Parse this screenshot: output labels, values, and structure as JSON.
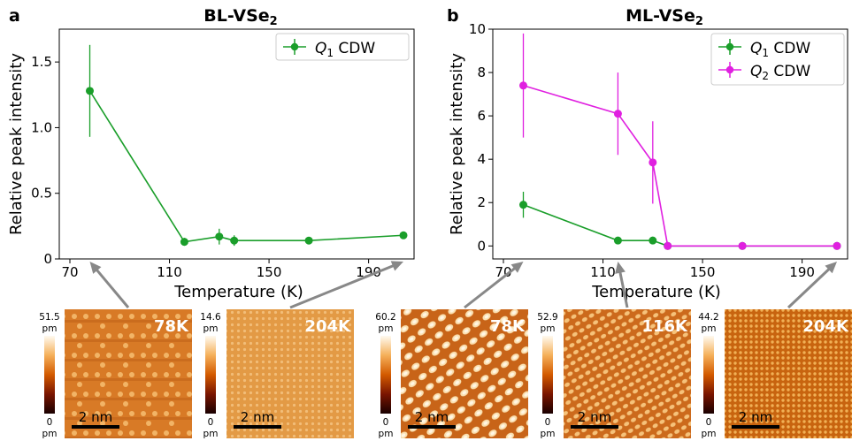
{
  "panels": [
    {
      "letter": "a",
      "title_main": "BL-VSe",
      "title_sub": "2",
      "ylabel": "Relative peak intensity",
      "xlabel": "Temperature (K)",
      "legend": [
        {
          "prefix": "Q",
          "sub": "1",
          "suffix": " CDW"
        }
      ],
      "x_ticks": [
        "70",
        "110",
        "150",
        "190"
      ],
      "y_ticks": [
        "0",
        "0.5",
        "1.0",
        "1.5"
      ]
    },
    {
      "letter": "b",
      "title_main": "ML-VSe",
      "title_sub": "2",
      "ylabel": "Relative peak intensity",
      "xlabel": "Temperature (K)",
      "legend": [
        {
          "prefix": "Q",
          "sub": "1",
          "suffix": " CDW"
        },
        {
          "prefix": "Q",
          "sub": "2",
          "suffix": " CDW"
        }
      ],
      "x_ticks": [
        "70",
        "110",
        "150",
        "190"
      ],
      "y_ticks": [
        "0",
        "2",
        "4",
        "6",
        "8",
        "10"
      ]
    }
  ],
  "chart_data": [
    {
      "type": "line",
      "title": "BL-VSe2",
      "xlabel": "Temperature (K)",
      "ylabel": "Relative peak intensity",
      "xlim": [
        70,
        204
      ],
      "ylim": [
        0,
        1.75
      ],
      "grid": false,
      "legend_position": "top-right",
      "series": [
        {
          "name": "Q1 CDW",
          "color": "#1a9e2a",
          "x": [
            78,
            116,
            130,
            136,
            166,
            204
          ],
          "y": [
            1.28,
            0.13,
            0.17,
            0.14,
            0.14,
            0.18
          ],
          "yerr": [
            0.35,
            0.03,
            0.06,
            0.04,
            0.01,
            0.01
          ]
        }
      ]
    },
    {
      "type": "line",
      "title": "ML-VSe2",
      "xlabel": "Temperature (K)",
      "ylabel": "Relative peak intensity",
      "xlim": [
        70,
        204
      ],
      "ylim": [
        -0.6,
        10
      ],
      "grid": false,
      "legend_position": "top-right",
      "series": [
        {
          "name": "Q1 CDW",
          "color": "#1a9e2a",
          "x": [
            78,
            116,
            130,
            136,
            166,
            204
          ],
          "y": [
            1.9,
            0.25,
            0.25,
            0.0,
            0.0,
            0.0
          ],
          "yerr": [
            0.6,
            0.05,
            0.05,
            0.0,
            0.0,
            0.0
          ]
        },
        {
          "name": "Q2 CDW",
          "color": "#e020e0",
          "x": [
            78,
            116,
            130,
            136,
            166,
            204
          ],
          "y": [
            7.4,
            6.1,
            3.85,
            0.0,
            0.0,
            0.0
          ],
          "yerr": [
            2.4,
            1.9,
            1.9,
            0.0,
            0.0,
            0.0
          ]
        }
      ]
    }
  ],
  "images": [
    {
      "panel": 0,
      "temp": "78K",
      "top": "51.5",
      "bottom": "0",
      "unit": "pm",
      "scale": "2 nm",
      "from_x": 78,
      "style": "cdw4"
    },
    {
      "panel": 0,
      "temp": "204K",
      "top": "14.6",
      "bottom": "0",
      "unit": "pm",
      "scale": "2 nm",
      "from_x": 204,
      "style": "flat"
    },
    {
      "panel": 1,
      "temp": "78K",
      "top": "60.2",
      "bottom": "0",
      "unit": "pm",
      "scale": "2 nm",
      "from_x": 78,
      "style": "diag"
    },
    {
      "panel": 1,
      "temp": "116K",
      "top": "52.9",
      "bottom": "0",
      "unit": "pm",
      "scale": "2 nm",
      "from_x": 116,
      "style": "diag2"
    },
    {
      "panel": 1,
      "temp": "204K",
      "top": "44.2",
      "bottom": "0",
      "unit": "pm",
      "scale": "2 nm",
      "from_x": 204,
      "style": "fine"
    }
  ]
}
